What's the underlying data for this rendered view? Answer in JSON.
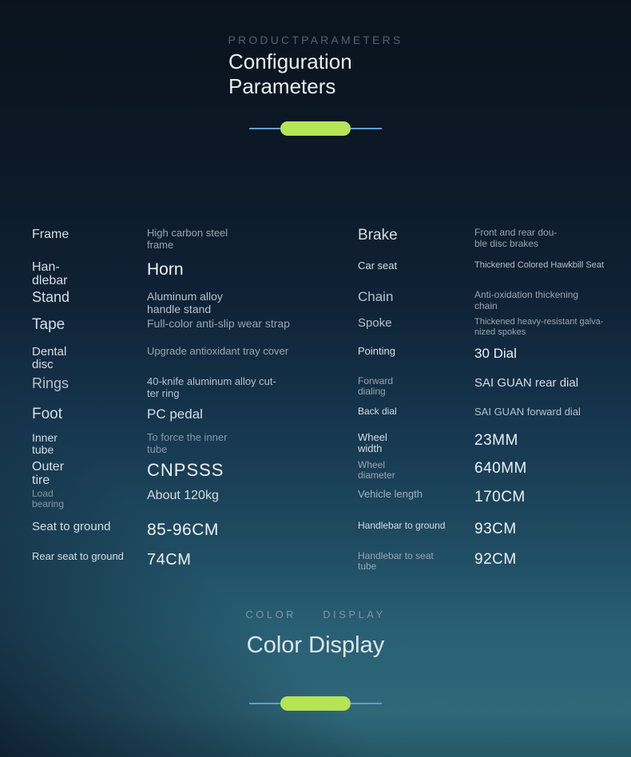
{
  "header": {
    "kicker": "PRODUCTPARAMETERS",
    "title_line1": "Configuration",
    "title_line2": "Parameters"
  },
  "color_section": {
    "kicker_word1": "COLOR",
    "kicker_word2": "DISPLAY",
    "title": "Color Display"
  },
  "accent": {
    "pill_color": "#b5e456",
    "line_color": "#5d9fd2"
  },
  "specs": {
    "left": [
      {
        "label": "Frame",
        "value": "High carbon steel\nframe"
      },
      {
        "label": "Han-\ndlebar",
        "value": "Horn"
      },
      {
        "label": "Stand",
        "value": "Aluminum alloy\nhandle stand"
      },
      {
        "label": "Tape",
        "value": "Full-color anti-slip wear strap"
      },
      {
        "label": "Dental\ndisc",
        "value": "Upgrade antioxidant tray cover"
      },
      {
        "label": "Rings",
        "value": "40-knife aluminum alloy cut-\nter ring"
      },
      {
        "label": "Foot",
        "value": "PC pedal"
      },
      {
        "label": "Inner\ntube",
        "value": "To force the inner\ntube"
      },
      {
        "label": "Outer\ntire",
        "value": "CNPSSS"
      },
      {
        "label": "Load\nbearing",
        "value": "About 120kg"
      },
      {
        "label": "Seat to ground",
        "value": "85-96CM"
      },
      {
        "label": "Rear seat to ground",
        "value": "74CM"
      }
    ],
    "right": [
      {
        "label": "Brake",
        "value": "Front and rear dou-\nble disc brakes"
      },
      {
        "label": "Car seat",
        "value": "Thickened Colored Hawkbill Seat"
      },
      {
        "label": "Chain",
        "value": "Anti-oxidation thickening\nchain"
      },
      {
        "label": "Spoke",
        "value": "Thickened heavy-resistant galva-\nnized spokes"
      },
      {
        "label": "Pointing",
        "value": "30 Dial"
      },
      {
        "label": "Forward\ndialing",
        "value": "SAI GUAN rear dial"
      },
      {
        "label": "Back dial",
        "value": "SAI GUAN forward dial"
      },
      {
        "label": "Wheel\nwidth",
        "value": "23MM"
      },
      {
        "label": "Wheel\ndiameter",
        "value": "640MM"
      },
      {
        "label": "Vehicle length",
        "value": "170CM"
      },
      {
        "label": "Handlebar to ground",
        "value": "93CM"
      },
      {
        "label": "Handlebar to seat\ntube",
        "value": "92CM"
      }
    ]
  }
}
